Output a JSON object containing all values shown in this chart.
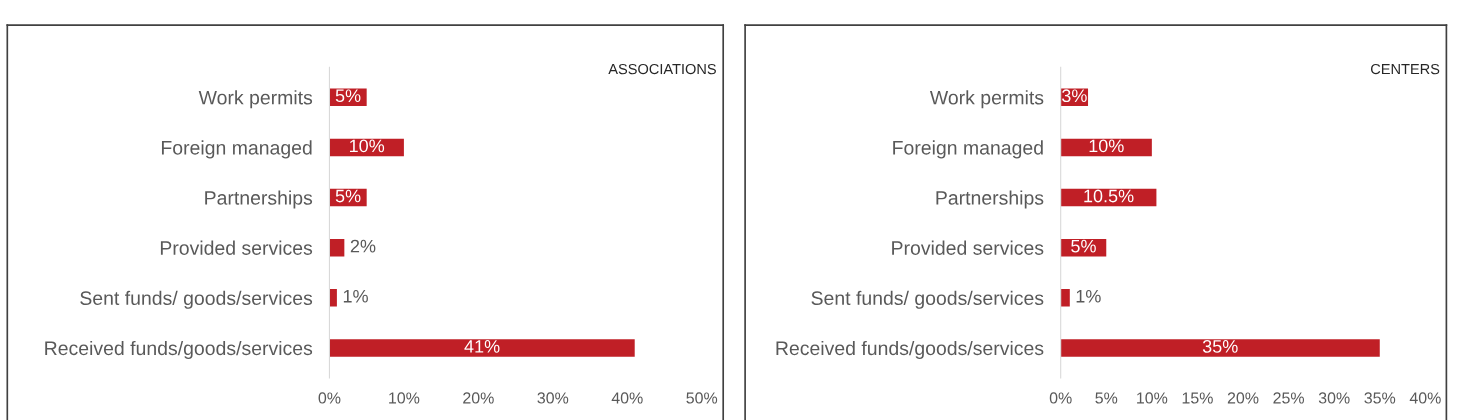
{
  "chart_data": [
    {
      "type": "bar",
      "orientation": "horizontal",
      "title": "ASSOCIATIONS",
      "categories": [
        "Work permits",
        "Foreign managed",
        "Partnerships",
        "Provided services",
        "Sent funds/ goods/services",
        "Received funds/goods/services"
      ],
      "values": [
        5,
        10,
        5,
        2,
        1,
        41
      ],
      "color": "#c01f26",
      "value_labels": [
        "5%",
        "10%",
        "5%",
        "2%",
        "1%",
        "41%"
      ],
      "xlim": [
        0,
        50
      ],
      "xticks": [
        {
          "value": 0,
          "label": "0%"
        },
        {
          "value": 10,
          "label": "10%"
        },
        {
          "value": 20,
          "label": "20%"
        },
        {
          "value": 30,
          "label": "30%"
        },
        {
          "value": 40,
          "label": "40%"
        },
        {
          "value": 50,
          "label": "50%"
        }
      ],
      "grid": false,
      "legend": false
    },
    {
      "type": "bar",
      "orientation": "horizontal",
      "title": "CENTERS",
      "categories": [
        "Work permits",
        "Foreign managed",
        "Partnerships",
        "Provided services",
        "Sent funds/ goods/services",
        "Received funds/goods/services"
      ],
      "values": [
        3,
        10,
        10.5,
        5,
        1,
        35
      ],
      "color": "#c01f26",
      "value_labels": [
        "3%",
        "10%",
        "10.5%",
        "5%",
        "1%",
        "35%"
      ],
      "xlim": [
        0,
        40
      ],
      "xticks": [
        {
          "value": 0,
          "label": "0%"
        },
        {
          "value": 5,
          "label": "5%"
        },
        {
          "value": 10,
          "label": "10%"
        },
        {
          "value": 15,
          "label": "15%"
        },
        {
          "value": 20,
          "label": "20%"
        },
        {
          "value": 25,
          "label": "25%"
        },
        {
          "value": 30,
          "label": "30%"
        },
        {
          "value": 35,
          "label": "35%"
        },
        {
          "value": 40,
          "label": "40%"
        }
      ],
      "grid": false,
      "legend": false
    }
  ]
}
